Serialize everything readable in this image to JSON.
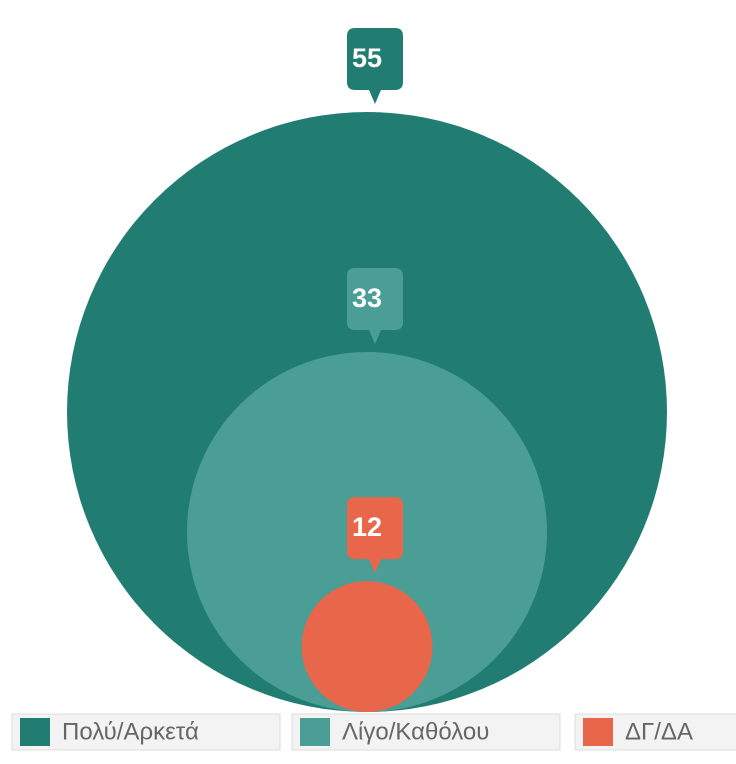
{
  "chart_data": {
    "type": "bubble",
    "categories": [
      "Πολύ/Αρκετά",
      "Λίγο/Καθόλου",
      "ΔΓ/ΔΑ"
    ],
    "values": [
      55,
      33,
      12
    ],
    "colors": [
      "#217d72",
      "#4a9e95",
      "#e8674a"
    ]
  }
}
